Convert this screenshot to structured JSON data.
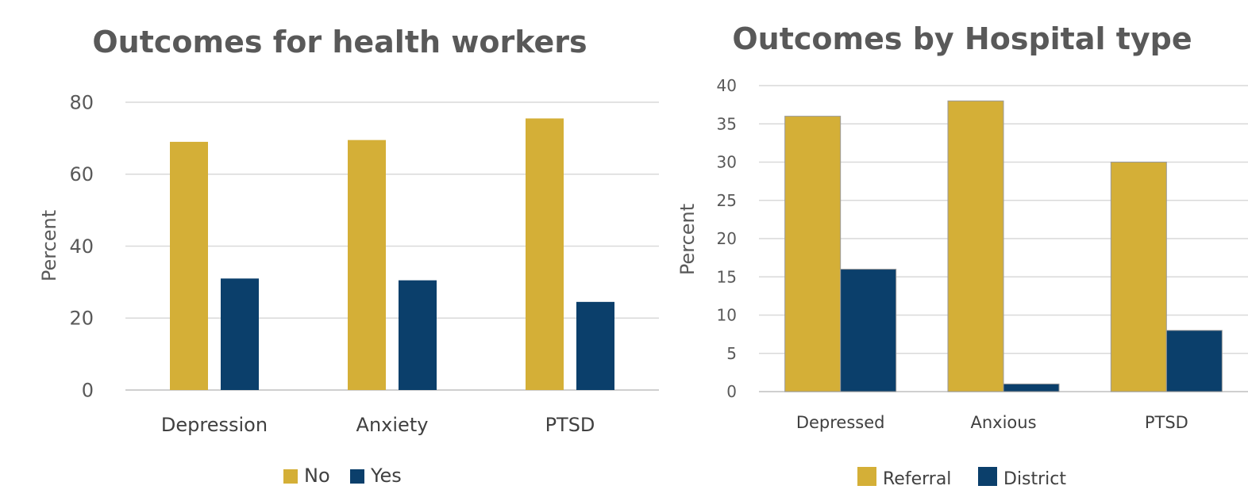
{
  "chart_data": [
    {
      "type": "bar",
      "title": "Outcomes for health workers",
      "xlabel": "",
      "ylabel": "Percent",
      "categories": [
        "Depression",
        "Anxiety",
        "PTSD"
      ],
      "ylim": [
        0,
        80
      ],
      "yticks": [
        0,
        20,
        40,
        60,
        80
      ],
      "grid": true,
      "legend_position": "bottom",
      "series": [
        {
          "name": "No",
          "color": "#D4AF37",
          "values": [
            69,
            69.5,
            75.5
          ]
        },
        {
          "name": "Yes",
          "color": "#0B3F6B",
          "values": [
            31,
            30.5,
            24.5
          ]
        }
      ]
    },
    {
      "type": "bar",
      "title": "Outcomes by Hospital type",
      "xlabel": "",
      "ylabel": "Percent",
      "categories": [
        "Depressed",
        "Anxious",
        "PTSD"
      ],
      "ylim": [
        0,
        40
      ],
      "yticks": [
        0,
        5,
        10,
        15,
        20,
        25,
        30,
        35,
        40
      ],
      "grid": true,
      "legend_position": "bottom",
      "series": [
        {
          "name": "Referral",
          "color": "#D4AF37",
          "values": [
            36,
            38,
            30
          ]
        },
        {
          "name": "District",
          "color": "#0B3F6B",
          "values": [
            16,
            1,
            8
          ]
        }
      ]
    }
  ]
}
